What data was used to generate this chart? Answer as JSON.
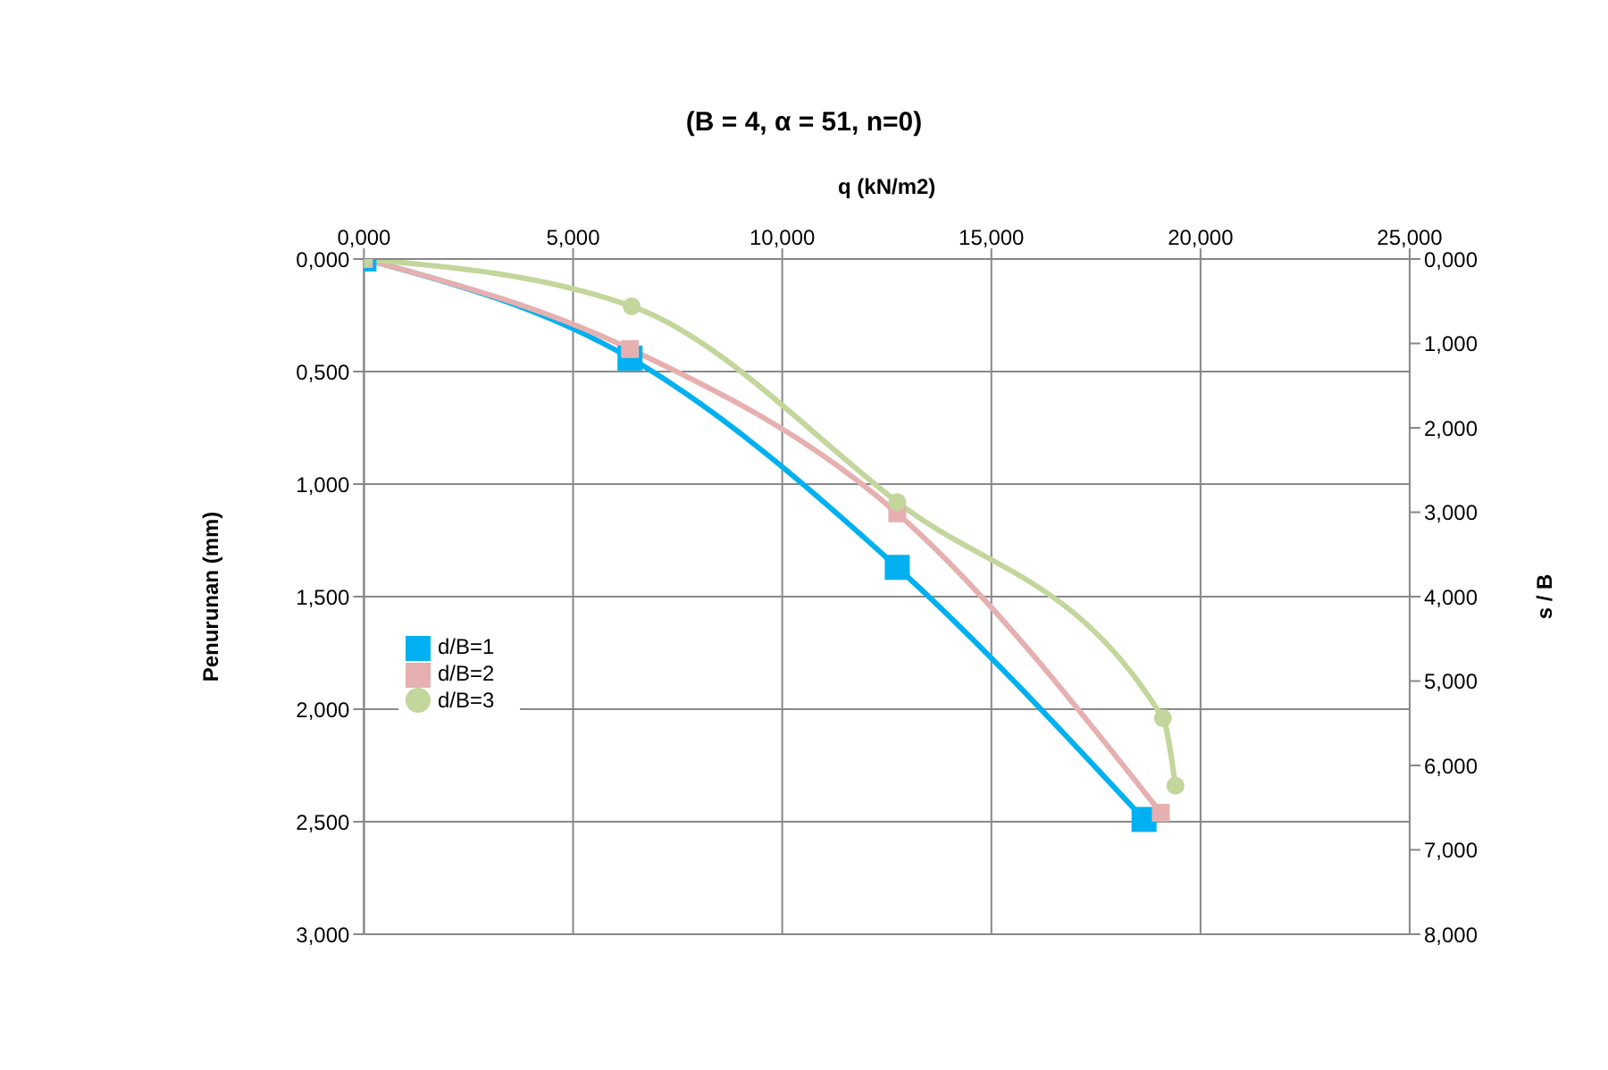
{
  "chart_data": {
    "type": "line",
    "title": "(B = 4, α = 51, n=0)",
    "xlabel": "q (kN/m2)",
    "ylabel": "Penurunan (mm)",
    "y2label": "s / B",
    "xlim": [
      0,
      25
    ],
    "xticks": [
      {
        "value": 0,
        "label": "0,000"
      },
      {
        "value": 5,
        "label": "5,000"
      },
      {
        "value": 10,
        "label": "10,000"
      },
      {
        "value": 15,
        "label": "15,000"
      },
      {
        "value": 20,
        "label": "20,000"
      },
      {
        "value": 25,
        "label": "25,000"
      }
    ],
    "ylim": [
      3,
      0
    ],
    "yticks": [
      {
        "value": 0,
        "label": "0,000"
      },
      {
        "value": 0.5,
        "label": "0,500"
      },
      {
        "value": 1,
        "label": "1,000"
      },
      {
        "value": 1.5,
        "label": "1,500"
      },
      {
        "value": 2,
        "label": "2,000"
      },
      {
        "value": 2.5,
        "label": "2,500"
      },
      {
        "value": 3,
        "label": "3,000"
      }
    ],
    "y2lim": [
      8,
      0
    ],
    "y2ticks": [
      {
        "value": 0,
        "label": "0,000"
      },
      {
        "value": 1,
        "label": "1,000"
      },
      {
        "value": 2,
        "label": "2,000"
      },
      {
        "value": 3,
        "label": "3,000"
      },
      {
        "value": 4,
        "label": "4,000"
      },
      {
        "value": 5,
        "label": "5,000"
      },
      {
        "value": 6,
        "label": "6,000"
      },
      {
        "value": 7,
        "label": "7,000"
      },
      {
        "value": 8,
        "label": "8,000"
      }
    ],
    "grid": true,
    "legend": "left",
    "series": [
      {
        "name": "d/B=1",
        "color": "#00b0f0",
        "marker": "square",
        "x": [
          0,
          6.36,
          12.75,
          18.65
        ],
        "values": [
          0,
          0.44,
          1.37,
          2.49
        ]
      },
      {
        "name": "d/B=2",
        "color": "#e6b0b0",
        "marker": "square",
        "x": [
          0,
          6.36,
          12.75,
          19.05
        ],
        "values": [
          0,
          0.4,
          1.13,
          2.46
        ]
      },
      {
        "name": "d/B=3",
        "color": "#c3d69b",
        "marker": "circle",
        "x": [
          0,
          6.4,
          12.75,
          19.1,
          19.4
        ],
        "values": [
          0,
          0.21,
          1.08,
          2.04,
          2.34
        ]
      }
    ]
  }
}
